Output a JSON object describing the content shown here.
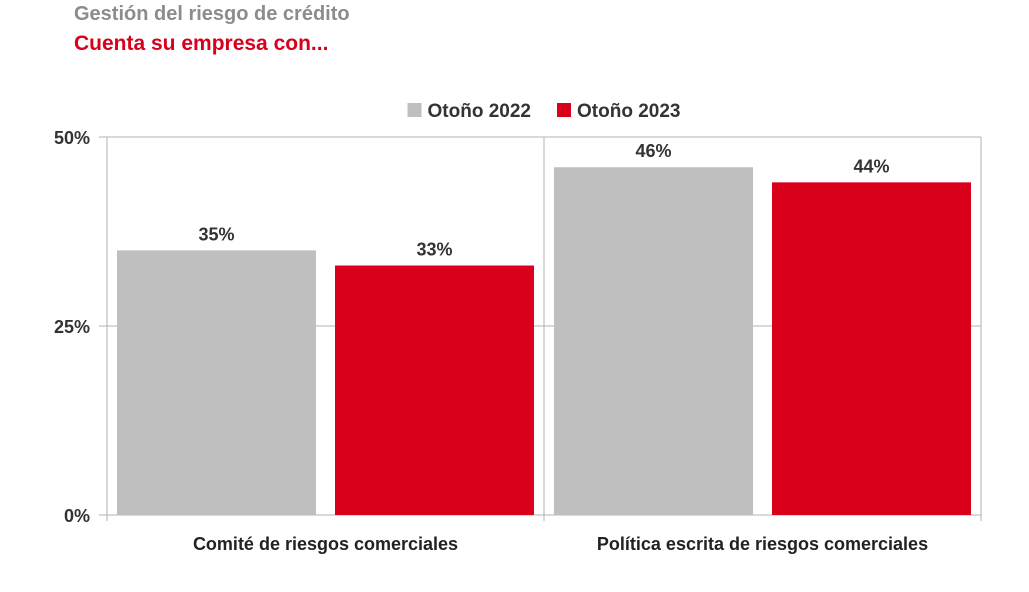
{
  "header": {
    "title": "Gestión del riesgo de crédito",
    "subtitle": "Cuenta su empresa con..."
  },
  "colors": {
    "title": "#8c8c8c",
    "subtitle": "#d9001b",
    "series_2022": "#bfbfbf",
    "series_2023": "#d9001b",
    "grid": "#b3b3b3"
  },
  "chart_data": {
    "type": "bar",
    "categories": [
      "Comité de riesgos comerciales",
      "Política escrita de riesgos comerciales"
    ],
    "series": [
      {
        "name": "Otoño 2022",
        "values": [
          35,
          46
        ],
        "labels": [
          "35%",
          "46%"
        ],
        "color": "#bfbfbf"
      },
      {
        "name": "Otoño 2023",
        "values": [
          33,
          44
        ],
        "labels": [
          "33%",
          "44%"
        ],
        "color": "#d9001b"
      }
    ],
    "ylim": [
      0,
      50
    ],
    "yticks": [
      0,
      25,
      50
    ],
    "ytick_labels": [
      "0%",
      "25%",
      "50%"
    ],
    "grid": true,
    "legend": "top-center"
  }
}
